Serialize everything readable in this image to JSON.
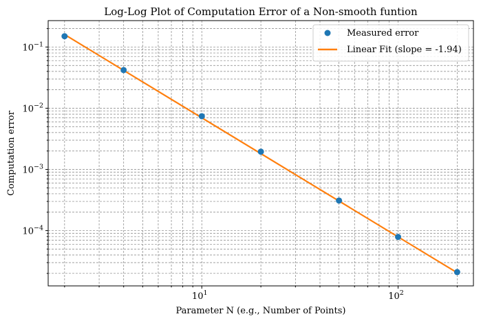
{
  "chart_data": {
    "type": "scatter",
    "title": "Log-Log Plot of Computation Error of a Non-smooth funtion",
    "xlabel": "Parameter N (e.g., Number of Points)",
    "ylabel": "Computation error",
    "xscale": "log",
    "yscale": "log",
    "xlim": [
      1.65,
      242
    ],
    "ylim": [
      1.25e-05,
      0.27
    ],
    "grid": "both major and minor, dashed",
    "legend_position": "top-right",
    "x_ticks": [
      {
        "value": 10,
        "base": "10",
        "exp": "1"
      },
      {
        "value": 100,
        "base": "10",
        "exp": "2"
      }
    ],
    "y_ticks": [
      {
        "value": 0.1,
        "base": "10",
        "exp": "−1"
      },
      {
        "value": 0.01,
        "base": "10",
        "exp": "−2"
      },
      {
        "value": 0.001,
        "base": "10",
        "exp": "−3"
      },
      {
        "value": 0.0001,
        "base": "10",
        "exp": "−4"
      }
    ],
    "series": [
      {
        "name": "Measured error",
        "kind": "scatter",
        "color": "#1f77b4",
        "x": [
          2,
          4,
          10,
          20,
          50,
          100,
          200
        ],
        "y": [
          0.15,
          0.042,
          0.0074,
          0.00195,
          0.00031,
          7.9e-05,
          2.1e-05
        ]
      },
      {
        "name": "Linear Fit (slope = -1.94)",
        "kind": "line",
        "color": "#ff7f0e",
        "x": [
          2,
          200
        ],
        "y": [
          0.16,
          2.05e-05
        ]
      }
    ]
  }
}
